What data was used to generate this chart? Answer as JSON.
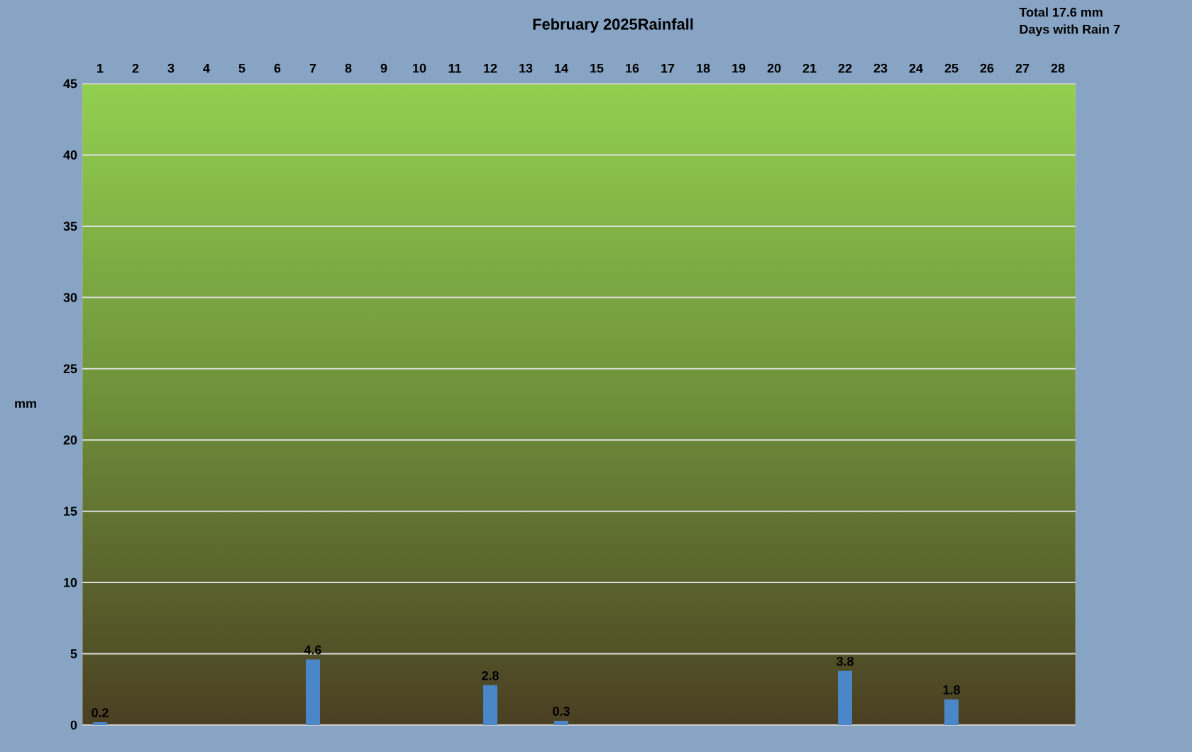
{
  "chart_data": {
    "type": "bar",
    "title": "February 2025Rainfall",
    "ylabel": "mm",
    "annotations": [
      "Total 17.6 mm",
      "Days with Rain 7"
    ],
    "categories": [
      "1",
      "2",
      "3",
      "4",
      "5",
      "6",
      "7",
      "8",
      "9",
      "10",
      "11",
      "12",
      "13",
      "14",
      "15",
      "16",
      "17",
      "18",
      "19",
      "20",
      "21",
      "22",
      "23",
      "24",
      "25",
      "26",
      "27",
      "28"
    ],
    "values": [
      0.2,
      null,
      null,
      null,
      null,
      null,
      4.6,
      null,
      null,
      null,
      null,
      2.8,
      null,
      0.3,
      null,
      null,
      null,
      null,
      null,
      null,
      null,
      3.8,
      null,
      null,
      1.8,
      null,
      null,
      null
    ],
    "color": "#4a86c8",
    "data_labels": true,
    "grid": "y",
    "ylim": [
      0,
      45
    ],
    "yticks": [
      0,
      5,
      10,
      15,
      20,
      25,
      30,
      35,
      40,
      45
    ]
  }
}
